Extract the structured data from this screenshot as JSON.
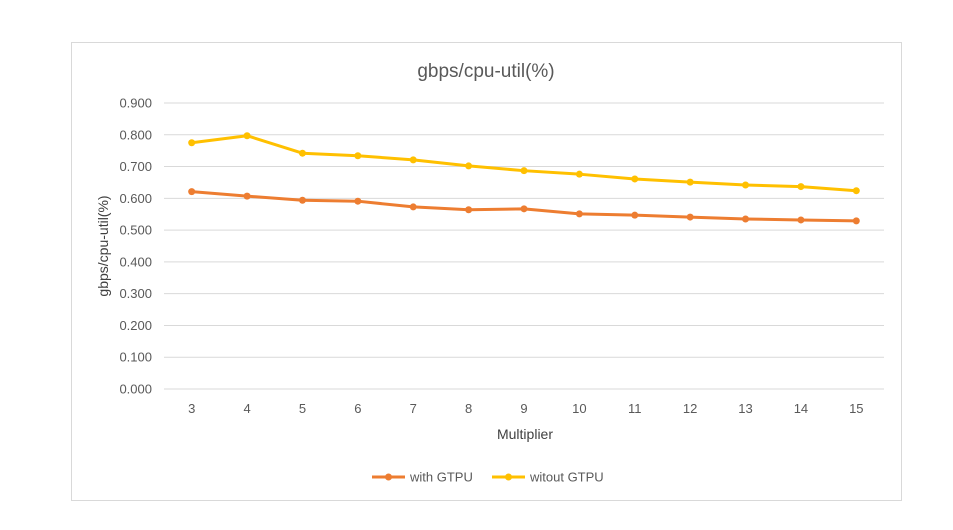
{
  "chart_data": {
    "type": "line",
    "title": "gbps/cpu-util(%)",
    "xlabel": "Multiplier",
    "ylabel": "gbps/cpu-util(%)",
    "categories": [
      "3",
      "4",
      "5",
      "6",
      "7",
      "8",
      "9",
      "10",
      "11",
      "12",
      "13",
      "14",
      "15"
    ],
    "ylim": [
      0,
      0.9
    ],
    "yticks": [
      "0.000",
      "0.100",
      "0.200",
      "0.300",
      "0.400",
      "0.500",
      "0.600",
      "0.700",
      "0.800",
      "0.900"
    ],
    "grid": true,
    "legend_position": "bottom",
    "series": [
      {
        "name": "with GTPU",
        "color": "#ED7D31",
        "values": [
          0.621,
          0.607,
          0.594,
          0.591,
          0.573,
          0.564,
          0.567,
          0.551,
          0.547,
          0.541,
          0.535,
          0.532,
          0.529
        ]
      },
      {
        "name": "witout GTPU",
        "color": "#FFC000",
        "values": [
          0.775,
          0.797,
          0.742,
          0.734,
          0.721,
          0.702,
          0.687,
          0.676,
          0.661,
          0.651,
          0.642,
          0.637,
          0.624
        ]
      }
    ]
  }
}
